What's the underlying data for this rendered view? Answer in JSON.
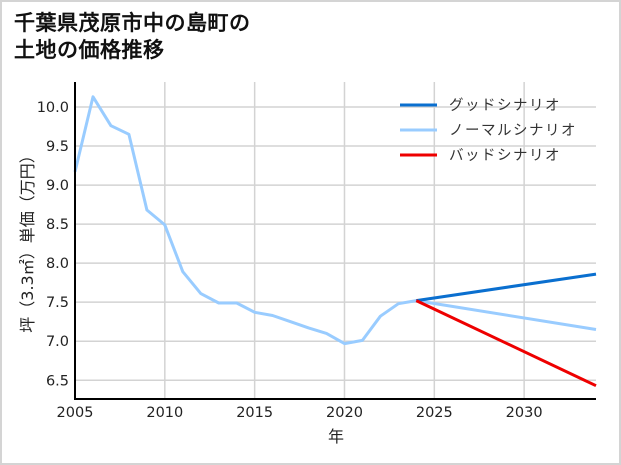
{
  "title": {
    "line1": "千葉県茂原市中の島町の",
    "line2": "土地の価格推移"
  },
  "chart_data": {
    "type": "line",
    "title": "千葉県茂原市中の島町の土地の価格推移",
    "xlabel": "年",
    "ylabel": "坪（3.3㎡）単価（万円）",
    "xlim": [
      2005,
      2034
    ],
    "ylim": [
      6.26,
      10.32
    ],
    "xticks": [
      2005,
      2010,
      2015,
      2020,
      2025,
      2030
    ],
    "yticks": [
      "6.5",
      "7.0",
      "7.5",
      "8.0",
      "8.5",
      "9.0",
      "9.5",
      "10.0"
    ],
    "grid": true,
    "legend_position": "upper right",
    "colors": {
      "good": "#0a6fcf",
      "normal": "#99ccff",
      "bad": "#ee0000",
      "grid": "#d3d3d3",
      "axis": "#000000"
    },
    "series": [
      {
        "name": "ノーマルシナリオ",
        "key": "normal",
        "x": [
          2005,
          2006,
          2007,
          2008,
          2009,
          2010,
          2011,
          2012,
          2013,
          2014,
          2015,
          2016,
          2017,
          2018,
          2019,
          2020,
          2021,
          2022,
          2023,
          2024,
          2034
        ],
        "values": [
          9.17,
          10.13,
          9.76,
          9.65,
          8.68,
          8.49,
          7.89,
          7.61,
          7.49,
          7.49,
          7.37,
          7.33,
          7.25,
          7.17,
          7.1,
          6.97,
          7.01,
          7.32,
          7.48,
          7.52,
          7.15
        ]
      },
      {
        "name": "グッドシナリオ",
        "key": "good",
        "x": [
          2024,
          2034
        ],
        "values": [
          7.52,
          7.86
        ]
      },
      {
        "name": "バッドシナリオ",
        "key": "bad",
        "x": [
          2024,
          2034
        ],
        "values": [
          7.52,
          6.43
        ]
      }
    ],
    "legend": [
      {
        "label": "グッドシナリオ",
        "key": "good"
      },
      {
        "label": "ノーマルシナリオ",
        "key": "normal"
      },
      {
        "label": "バッドシナリオ",
        "key": "bad"
      }
    ]
  }
}
